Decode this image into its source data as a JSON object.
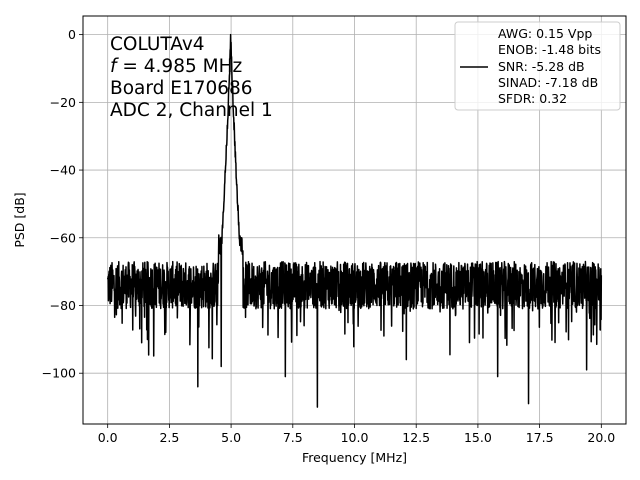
{
  "chart_data": {
    "type": "line",
    "xlabel": "Frequency [MHz]",
    "ylabel": "PSD [dB]",
    "xlim": [
      -1.0,
      21.0
    ],
    "ylim": [
      -115.0,
      5.5
    ],
    "xticks": [
      0.0,
      2.5,
      5.0,
      7.5,
      10.0,
      12.5,
      15.0,
      17.5,
      20.0
    ],
    "xtick_labels": [
      "0.0",
      "2.5",
      "5.0",
      "7.5",
      "10.0",
      "12.5",
      "15.0",
      "17.5",
      "20.0"
    ],
    "yticks": [
      0,
      -20,
      -40,
      -60,
      -80,
      -100
    ],
    "ytick_labels": [
      "0",
      "−20",
      "−40",
      "−60",
      "−80",
      "−100"
    ],
    "grid": true,
    "annotation": {
      "line1": "COLUTAv4",
      "line2_var": "f",
      "line2_rest": " = 4.985 MHz",
      "line3": "Board E170686",
      "line4": "ADC 2, Channel 1"
    },
    "legend": {
      "position": "top-right",
      "lines": [
        "AWG: 0.15 Vpp",
        "ENOB: -1.48 bits",
        "SNR: -5.28 dB",
        "SINAD: -7.18 dB",
        "SFDR: 0.32"
      ]
    },
    "series": [
      {
        "color": "#000000",
        "peak": {
          "x": 4.985,
          "y": 0
        },
        "noise_floor_db": -74,
        "x_start": 0.0,
        "x_end": 20.0,
        "notable_dips": [
          {
            "x": 3.65,
            "y": -104
          },
          {
            "x": 8.5,
            "y": -110
          },
          {
            "x": 7.2,
            "y": -101
          },
          {
            "x": 17.05,
            "y": -109
          },
          {
            "x": 15.8,
            "y": -101
          },
          {
            "x": 19.4,
            "y": -99
          },
          {
            "x": 4.6,
            "y": -98
          },
          {
            "x": 12.1,
            "y": -96
          }
        ]
      }
    ]
  }
}
